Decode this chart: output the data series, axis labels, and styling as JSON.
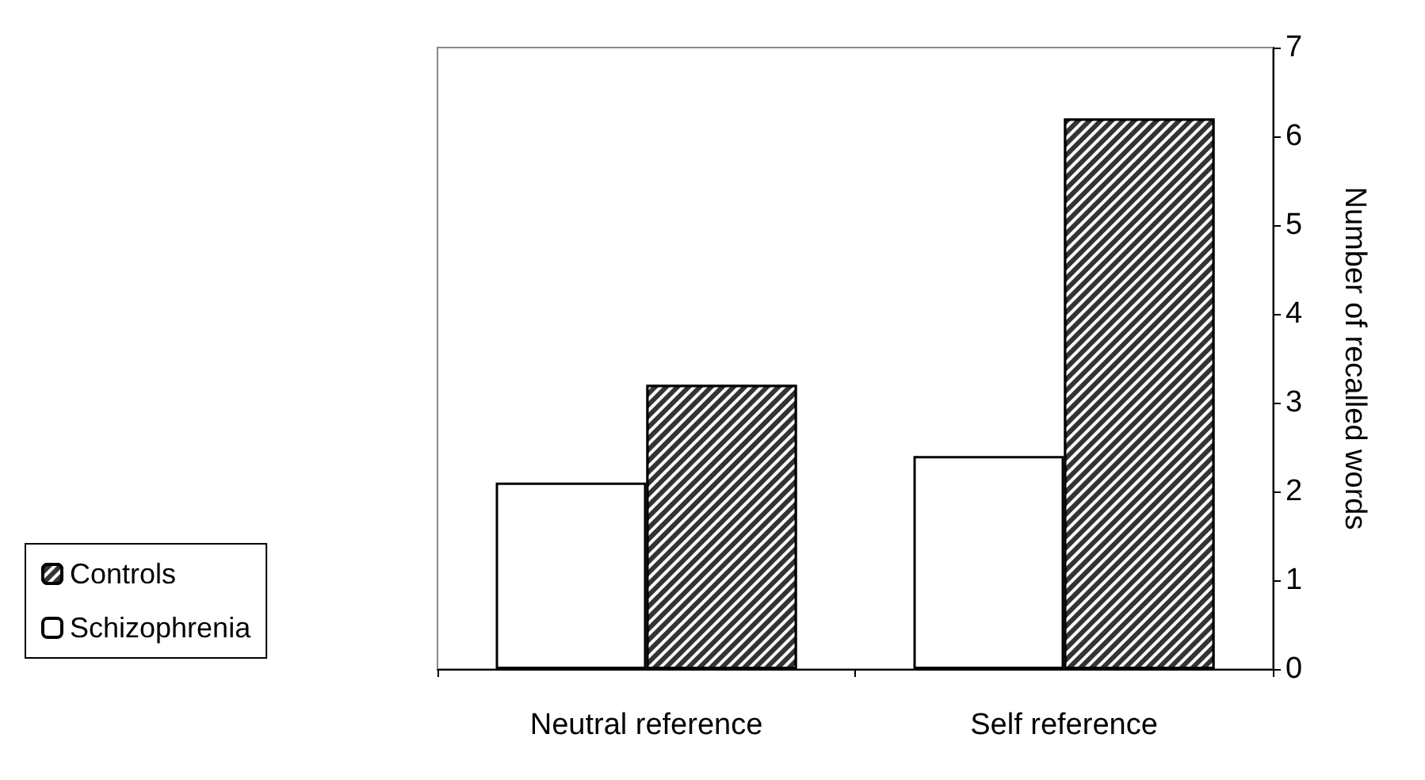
{
  "chart_data": {
    "type": "bar",
    "ylabel": "Number of recalled words",
    "categories": [
      "Neutral reference",
      "Self reference"
    ],
    "series": [
      {
        "name": "Schizophrenia",
        "color": "#ffffff",
        "values": [
          2.1,
          2.4
        ]
      },
      {
        "name": "Controls",
        "color": "#333333",
        "values": [
          3.2,
          6.2
        ]
      }
    ],
    "ylim": [
      0,
      7
    ],
    "yticks": [
      0,
      1,
      2,
      3,
      4,
      5,
      6,
      7
    ],
    "grid": false,
    "legend": "bottom left"
  }
}
